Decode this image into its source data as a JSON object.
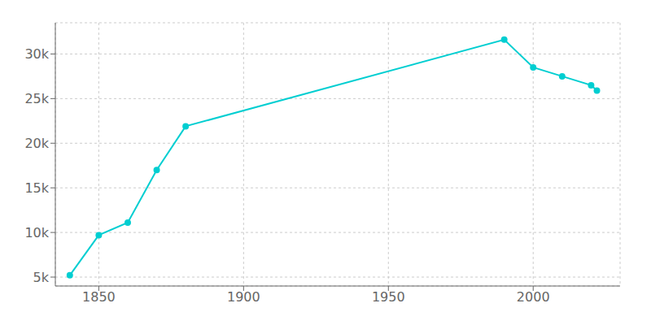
{
  "chart_data": {
    "type": "line",
    "x": [
      1840,
      1850,
      1860,
      1870,
      1880,
      1990,
      2000,
      2010,
      2020,
      2022
    ],
    "values": [
      5200,
      9700,
      11100,
      17000,
      21900,
      31600,
      28500,
      27500,
      26500,
      25900
    ],
    "color": "#00CED1",
    "marker": "circle",
    "xlim": [
      1835,
      2030
    ],
    "xticks": [
      1850,
      1900,
      1950,
      2000
    ],
    "ylim": [
      4000,
      33500
    ],
    "yticks": [
      {
        "value": 5000,
        "label": "5k"
      },
      {
        "value": 10000,
        "label": "10k"
      },
      {
        "value": 15000,
        "label": "15k"
      },
      {
        "value": 20000,
        "label": "20k"
      },
      {
        "value": 25000,
        "label": "25k"
      },
      {
        "value": 30000,
        "label": "30k"
      }
    ],
    "grid": true
  }
}
